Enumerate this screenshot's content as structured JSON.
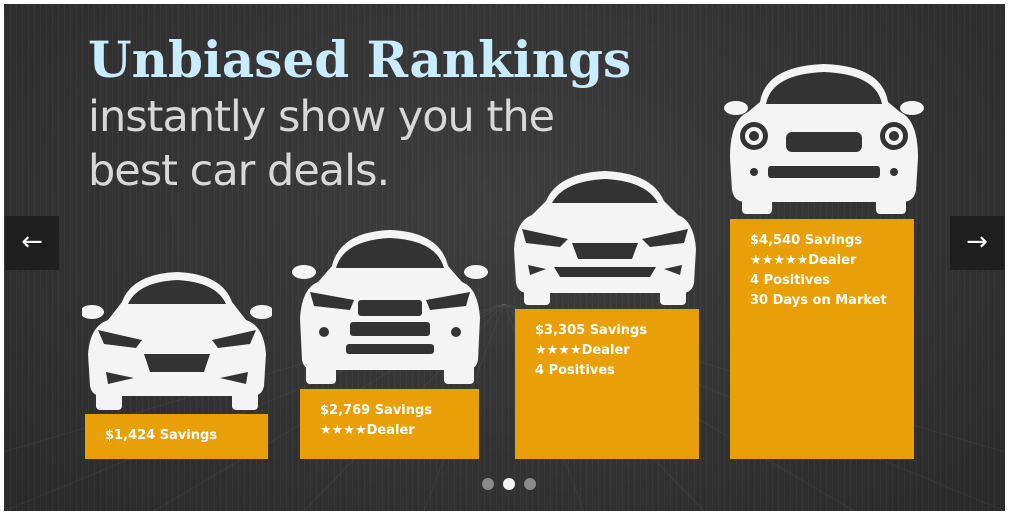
{
  "headline": {
    "title": "Unbiased Rankings",
    "subtitle_line1": "instantly show you the",
    "subtitle_line2": "best car deals."
  },
  "cards": [
    {
      "lines": [
        "$1,424 Savings"
      ]
    },
    {
      "lines": [
        "$2,769 Savings",
        "★★★★Dealer"
      ]
    },
    {
      "lines": [
        "$3,305 Savings",
        "★★★★Dealer",
        "4 Positives"
      ]
    },
    {
      "lines": [
        "$4,540 Savings",
        "★★★★★Dealer",
        "4 Positives",
        "30 Days on Market"
      ]
    }
  ],
  "nav": {
    "prev_icon": "←",
    "next_icon": "→"
  },
  "pagination": {
    "count": 3,
    "active_index": 1
  },
  "colors": {
    "background": "#333333",
    "headline_accent": "#c9ecff",
    "card": "#e9a008",
    "car": "#f4f4f4"
  }
}
